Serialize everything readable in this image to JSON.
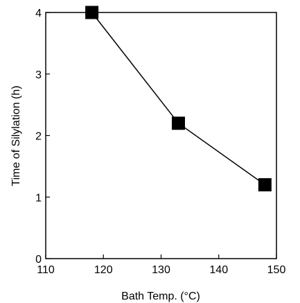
{
  "chart_data": {
    "type": "line",
    "title": "",
    "xlabel": "Bath Temp. (°C)",
    "ylabel": "Time of Silylation (h)",
    "xlim": [
      110,
      150
    ],
    "ylim": [
      0,
      4
    ],
    "x_ticks": [
      110,
      120,
      130,
      140,
      150
    ],
    "y_ticks": [
      0,
      1,
      2,
      3,
      4
    ],
    "x_tick_labels": [
      "110",
      "120",
      "130",
      "140",
      "150"
    ],
    "y_tick_labels": [
      "0",
      "1",
      "2",
      "3",
      "4"
    ],
    "grid": false,
    "legend": "none",
    "marker": "square",
    "color": "#000000",
    "series": [
      {
        "x": [
          118,
          133,
          148
        ],
        "y": [
          4.0,
          2.2,
          1.2
        ]
      }
    ]
  }
}
